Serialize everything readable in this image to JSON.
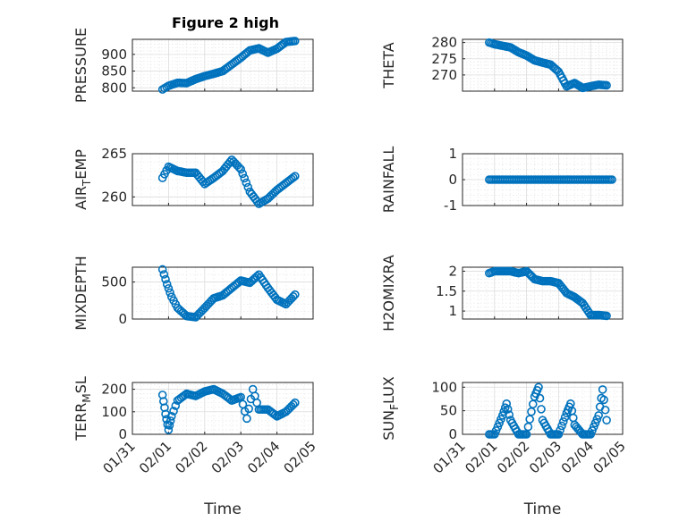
{
  "figure": {
    "title": "Figure 2 high",
    "marker_color": "#0072BD"
  },
  "chart_data": [
    {
      "type": "scatter",
      "ylabel": "PRESSURE",
      "title": "Figure 2 high",
      "ylim": [
        790,
        945
      ],
      "yticks": [
        800,
        850,
        900
      ],
      "ytick_labels": [
        "800",
        "850",
        "900"
      ],
      "xlim": [
        "01/31",
        "02/05"
      ],
      "x_tick_labels": [],
      "grid": true,
      "x": [
        "01/31 20:00",
        "02/01 00:00",
        "02/01 06:00",
        "02/01 12:00",
        "02/01 18:00",
        "02/02 00:00",
        "02/02 06:00",
        "02/02 12:00",
        "02/02 18:00",
        "02/03 00:00",
        "02/03 06:00",
        "02/03 12:00",
        "02/03 18:00",
        "02/04 00:00",
        "02/04 06:00",
        "02/04 12:00"
      ],
      "y": [
        795,
        806,
        815,
        814,
        826,
        835,
        842,
        850,
        870,
        890,
        912,
        918,
        905,
        917,
        937,
        940
      ]
    },
    {
      "type": "scatter",
      "ylabel": "THETA",
      "ylim": [
        265,
        281
      ],
      "yticks": [
        270,
        275,
        280
      ],
      "ytick_labels": [
        "270",
        "275",
        "280"
      ],
      "xlim": [
        "01/31",
        "02/05"
      ],
      "x_tick_labels": [],
      "grid": true,
      "x": [
        "01/31 20:00",
        "02/01 00:00",
        "02/01 06:00",
        "02/01 12:00",
        "02/01 18:00",
        "02/02 00:00",
        "02/02 06:00",
        "02/02 12:00",
        "02/02 18:00",
        "02/03 00:00",
        "02/03 06:00",
        "02/03 12:00",
        "02/03 18:00",
        "02/04 00:00",
        "02/04 06:00",
        "02/04 12:00"
      ],
      "y": [
        280,
        279.5,
        279,
        278.5,
        277,
        276,
        274.5,
        273.8,
        273.2,
        271,
        266.5,
        267.5,
        266,
        266.5,
        267,
        266.8
      ]
    },
    {
      "type": "scatter",
      "ylabel": "AIR_TEMP",
      "ylabel_display": [
        "AIR",
        "T",
        "EMP"
      ],
      "ylim": [
        259,
        265
      ],
      "yticks": [
        260,
        265
      ],
      "ytick_labels": [
        "260",
        "265"
      ],
      "xlim": [
        "01/31",
        "02/05"
      ],
      "x_tick_labels": [],
      "grid": true,
      "x": [
        "01/31 20:00",
        "02/01 00:00",
        "02/01 06:00",
        "02/01 12:00",
        "02/01 18:00",
        "02/02 00:00",
        "02/02 06:00",
        "02/02 12:00",
        "02/02 18:00",
        "02/03 00:00",
        "02/03 06:00",
        "02/03 12:00",
        "02/03 18:00",
        "02/04 00:00",
        "02/04 06:00",
        "02/04 12:00"
      ],
      "y": [
        262.2,
        263.5,
        263.0,
        262.8,
        262.8,
        261.5,
        262.2,
        263.0,
        264.3,
        263.2,
        260.6,
        259.2,
        259.8,
        260.8,
        261.6,
        262.4
      ]
    },
    {
      "type": "scatter",
      "ylabel": "RAINFALL",
      "ylim": [
        -1,
        1
      ],
      "yticks": [
        -1,
        0,
        1
      ],
      "ytick_labels": [
        "-1",
        "0",
        "1"
      ],
      "xlim": [
        "01/31",
        "02/05"
      ],
      "x_tick_labels": [],
      "grid": true,
      "x": [
        "01/31 20:00",
        "02/04 16:00"
      ],
      "y": [
        0,
        0
      ]
    },
    {
      "type": "scatter",
      "ylabel": "MIXDEPTH",
      "ylim": [
        0,
        700
      ],
      "yticks": [
        0,
        500
      ],
      "ytick_labels": [
        "0",
        "500"
      ],
      "xlim": [
        "01/31",
        "02/05"
      ],
      "x_tick_labels": [],
      "grid": true,
      "x": [
        "01/31 20:00",
        "01/31 23:00",
        "02/01 02:00",
        "02/01 06:00",
        "02/01 12:00",
        "02/01 18:00",
        "02/02 00:00",
        "02/02 06:00",
        "02/02 12:00",
        "02/02 18:00",
        "02/03 00:00",
        "02/03 06:00",
        "02/03 12:00",
        "02/03 18:00",
        "02/04 00:00",
        "02/04 06:00",
        "02/04 12:00"
      ],
      "y": [
        670,
        470,
        300,
        150,
        40,
        25,
        150,
        280,
        320,
        420,
        520,
        490,
        600,
        420,
        260,
        200,
        330
      ]
    },
    {
      "type": "scatter",
      "ylabel": "H2OMIXRA",
      "ylim": [
        0.8,
        2.1
      ],
      "yticks": [
        1,
        1.5,
        2
      ],
      "ytick_labels": [
        "1",
        "1.5",
        "2"
      ],
      "xlim": [
        "01/31",
        "02/05"
      ],
      "x_tick_labels": [],
      "grid": true,
      "x": [
        "01/31 20:00",
        "02/01 00:00",
        "02/01 06:00",
        "02/01 12:00",
        "02/01 18:00",
        "02/02 00:00",
        "02/02 06:00",
        "02/02 12:00",
        "02/02 18:00",
        "02/03 00:00",
        "02/03 06:00",
        "02/03 12:00",
        "02/03 18:00",
        "02/04 00:00",
        "02/04 06:00",
        "02/04 12:00"
      ],
      "y": [
        1.95,
        2.0,
        2.0,
        2.0,
        1.95,
        2.0,
        1.8,
        1.75,
        1.75,
        1.7,
        1.45,
        1.35,
        1.2,
        0.9,
        0.9,
        0.88
      ]
    },
    {
      "type": "scatter",
      "ylabel": "TERR_MSL",
      "ylabel_display": [
        "TERR",
        "M",
        "SL"
      ],
      "ylim": [
        0,
        230
      ],
      "yticks": [
        0,
        100,
        200
      ],
      "ytick_labels": [
        "0",
        "100",
        "200"
      ],
      "xlim": [
        "01/31",
        "02/05"
      ],
      "xticks": [
        "01/31",
        "02/01",
        "02/02",
        "02/03",
        "02/04",
        "02/05"
      ],
      "x_tick_labels": [
        "01/31",
        "02/01",
        "02/02",
        "02/03",
        "02/04",
        "02/05"
      ],
      "xlabel": "Time",
      "grid": true,
      "x": [
        "01/31 20:00",
        "01/31 22:00",
        "02/01 00:00",
        "02/01 02:00",
        "02/01 06:00",
        "02/01 12:00",
        "02/01 18:00",
        "02/02 00:00",
        "02/02 06:00",
        "02/02 12:00",
        "02/02 18:00",
        "02/03 00:00",
        "02/03 04:00",
        "02/03 08:00",
        "02/03 12:00",
        "02/03 18:00",
        "02/04 00:00",
        "02/04 06:00",
        "02/04 12:00"
      ],
      "y": [
        175,
        90,
        20,
        80,
        150,
        180,
        170,
        190,
        200,
        180,
        150,
        165,
        70,
        200,
        110,
        110,
        80,
        100,
        140
      ]
    },
    {
      "type": "scatter",
      "ylabel": "SUN_FLUX",
      "ylabel_display": [
        "SUN",
        "F",
        "LUX"
      ],
      "ylim": [
        0,
        110
      ],
      "yticks": [
        0,
        50,
        100
      ],
      "ytick_labels": [
        "0",
        "50",
        "100"
      ],
      "xlim": [
        "01/31",
        "02/05"
      ],
      "xticks": [
        "01/31",
        "02/01",
        "02/02",
        "02/03",
        "02/04",
        "02/05"
      ],
      "x_tick_labels": [
        "01/31",
        "02/01",
        "02/02",
        "02/03",
        "02/04",
        "02/05"
      ],
      "xlabel": "Time",
      "grid": true,
      "x": [
        "01/31 20:00",
        "02/01 00:00",
        "02/01 06:00",
        "02/01 09:00",
        "02/01 12:00",
        "02/01 18:00",
        "02/02 00:00",
        "02/02 06:00",
        "02/02 09:00",
        "02/02 12:00",
        "02/02 18:00",
        "02/03 00:00",
        "02/03 06:00",
        "02/03 09:00",
        "02/03 12:00",
        "02/03 18:00",
        "02/04 00:00",
        "02/04 06:00",
        "02/04 09:00",
        "02/04 12:00"
      ],
      "y": [
        0,
        0,
        40,
        65,
        30,
        0,
        0,
        80,
        100,
        30,
        0,
        0,
        45,
        65,
        20,
        0,
        0,
        40,
        95,
        30
      ]
    }
  ]
}
